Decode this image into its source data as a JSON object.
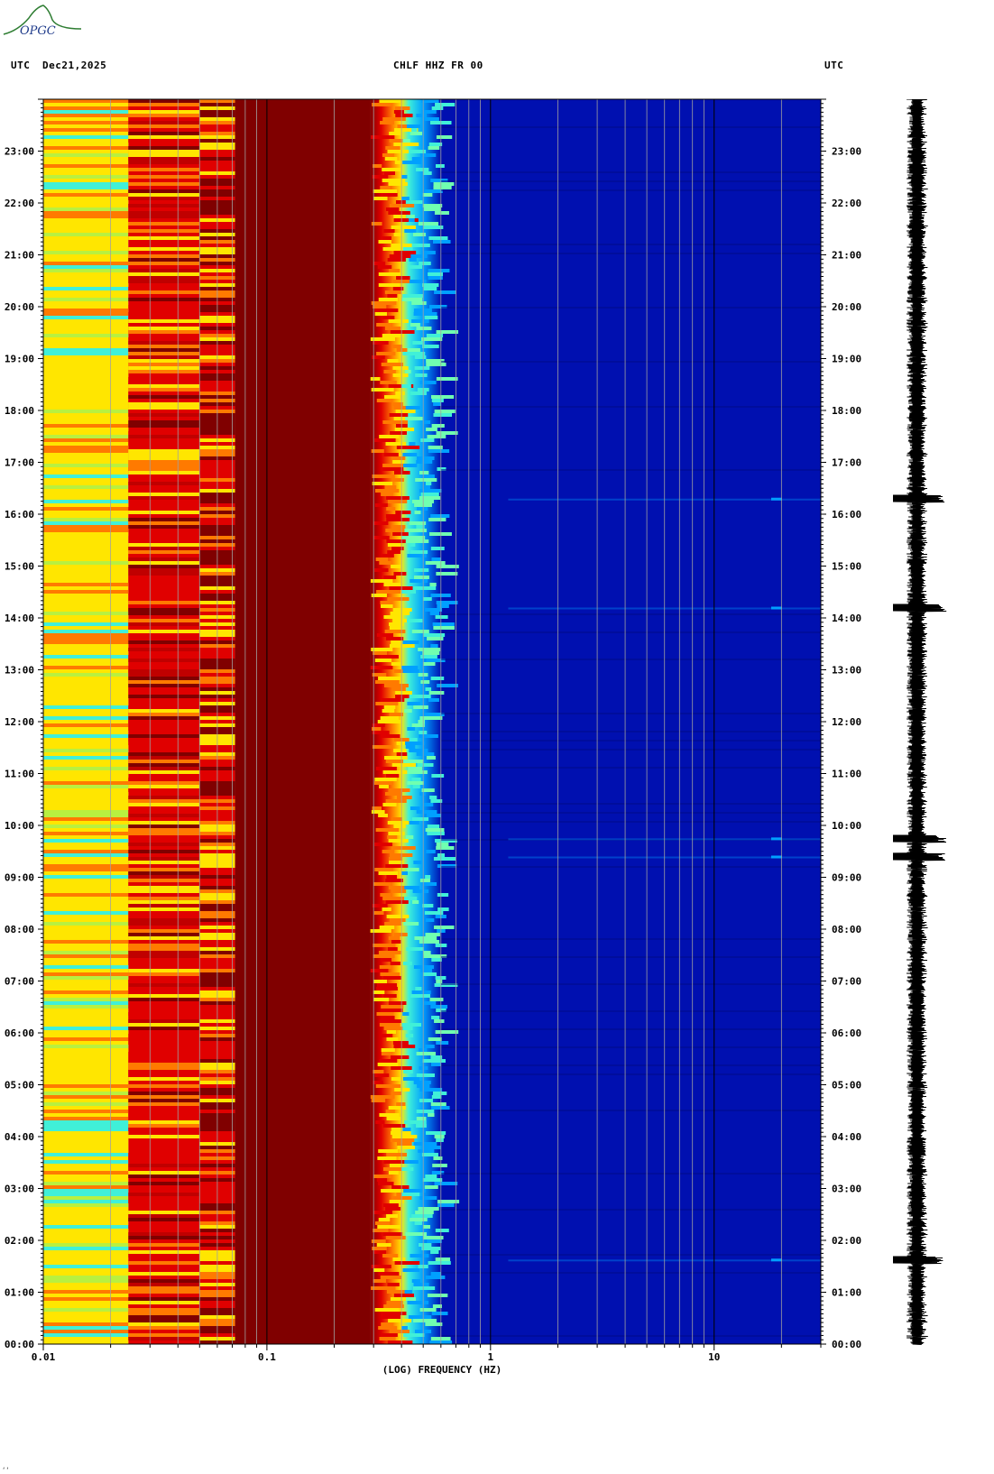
{
  "header": {
    "left_tz": "UTC",
    "date": "Dec21,2025",
    "station": "CHLF HHZ FR 00",
    "right_tz": "UTC"
  },
  "logo": {
    "text": "OPGC",
    "color": "#2e7d32",
    "text_color": "#1e3a8a"
  },
  "corner_mark": "‘‘",
  "chart_data": {
    "type": "heatmap",
    "title": "",
    "xlabel": "(LOG) FREQUENCY (HZ)",
    "ylabel": "",
    "x_scale": "log",
    "xlim_hz": [
      0.01,
      30
    ],
    "ylim_hours": [
      0,
      24
    ],
    "x_ticks": [
      {
        "value": 0.01,
        "label": "0.01"
      },
      {
        "value": 0.1,
        "label": "0.1"
      },
      {
        "value": 1,
        "label": "1"
      },
      {
        "value": 10,
        "label": "10"
      }
    ],
    "y_ticks": [
      {
        "hour": 0,
        "label": "00:00"
      },
      {
        "hour": 1,
        "label": "01:00"
      },
      {
        "hour": 2,
        "label": "02:00"
      },
      {
        "hour": 3,
        "label": "03:00"
      },
      {
        "hour": 4,
        "label": "04:00"
      },
      {
        "hour": 5,
        "label": "05:00"
      },
      {
        "hour": 6,
        "label": "06:00"
      },
      {
        "hour": 7,
        "label": "07:00"
      },
      {
        "hour": 8,
        "label": "08:00"
      },
      {
        "hour": 9,
        "label": "09:00"
      },
      {
        "hour": 10,
        "label": "10:00"
      },
      {
        "hour": 11,
        "label": "11:00"
      },
      {
        "hour": 12,
        "label": "12:00"
      },
      {
        "hour": 13,
        "label": "13:00"
      },
      {
        "hour": 14,
        "label": "14:00"
      },
      {
        "hour": 15,
        "label": "15:00"
      },
      {
        "hour": 16,
        "label": "16:00"
      },
      {
        "hour": 17,
        "label": "17:00"
      },
      {
        "hour": 18,
        "label": "18:00"
      },
      {
        "hour": 19,
        "label": "19:00"
      },
      {
        "hour": 20,
        "label": "20:00"
      },
      {
        "hour": 21,
        "label": "21:00"
      },
      {
        "hour": 22,
        "label": "22:00"
      },
      {
        "hour": 23,
        "label": "23:00"
      }
    ],
    "frequency_bands": [
      {
        "f_min": 0.01,
        "f_max": 0.024,
        "level": "yellow-cyan"
      },
      {
        "f_min": 0.024,
        "f_max": 0.05,
        "level": "red-orange"
      },
      {
        "f_min": 0.05,
        "f_max": 0.072,
        "level": "red-darkred"
      },
      {
        "f_min": 0.072,
        "f_max": 0.29,
        "level": "darkred"
      },
      {
        "f_min": 0.29,
        "f_max": 0.4,
        "level": "red-yellow transition"
      },
      {
        "f_min": 0.4,
        "f_max": 0.6,
        "level": "cyan-blue transition"
      },
      {
        "f_min": 0.6,
        "f_max": 30,
        "level": "blue"
      }
    ],
    "events_hours": [
      1.63,
      9.4,
      9.75,
      14.2,
      16.3
    ],
    "colors": {
      "darkred": "#800000",
      "red": "#e00000",
      "orange": "#ff7a00",
      "yellow": "#ffe600",
      "cyan": "#40f0d8",
      "lightblue": "#00a0ff",
      "blue": "#0010b0",
      "navy": "#000c90"
    }
  }
}
